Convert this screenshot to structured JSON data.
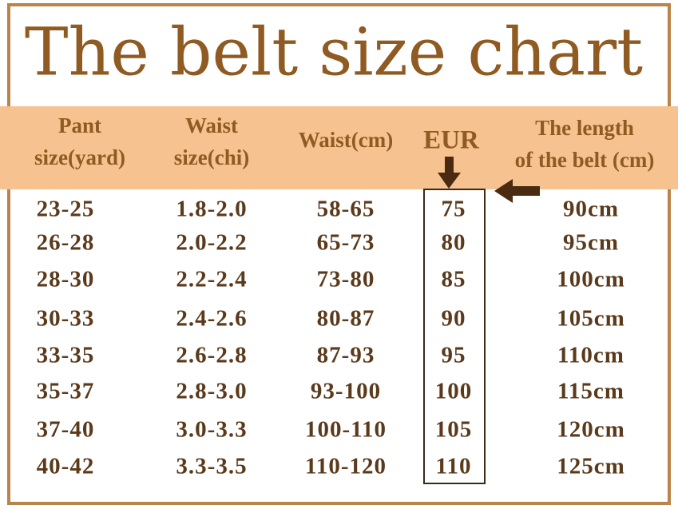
{
  "title": "The belt size chart",
  "header": [
    [
      "Pant",
      "size(yard)"
    ],
    [
      "Waist",
      "size(chi)"
    ],
    [
      "Waist(cm)"
    ],
    [
      "EUR"
    ],
    [
      "The length",
      "of the belt (cm)"
    ]
  ],
  "rows": [
    [
      "23-25",
      "1.8-2.0",
      "58-65",
      "75",
      "90cm"
    ],
    [
      "26-28",
      "2.0-2.2",
      "65-73",
      "80",
      "95cm"
    ],
    [
      "28-30",
      "2.2-2.4",
      "73-80",
      "85",
      "100cm"
    ],
    [
      "30-33",
      "2.4-2.6",
      "80-87",
      "90",
      "105cm"
    ],
    [
      "33-35",
      "2.6-2.8",
      "87-93",
      "95",
      "110cm"
    ],
    [
      "35-37",
      "2.8-3.0",
      "93-100",
      "100",
      "115cm"
    ],
    [
      "37-40",
      "3.0-3.3",
      "100-110",
      "105",
      "120cm"
    ],
    [
      "40-42",
      "3.3-3.5",
      "110-120",
      "110",
      "125cm"
    ]
  ]
}
